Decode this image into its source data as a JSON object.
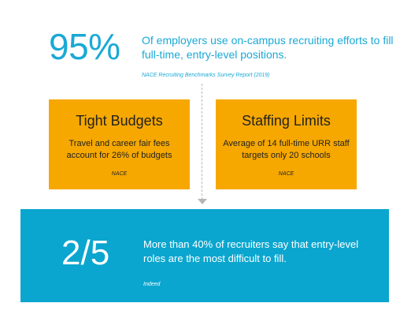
{
  "header": {
    "stat": "95%",
    "text": "Of employers use on-campus recruiting efforts to fill full-time, entry-level positions.",
    "source": "NACE Recruiting Benchmarks Survey Report (2019)"
  },
  "cards": [
    {
      "title": "Tight Budgets",
      "body": "Travel and career fair fees account for 26% of budgets",
      "source": "NACE"
    },
    {
      "title": "Staffing Limits",
      "body": "Average of 14 full-time URR staff targets only 20 schools",
      "source": "NACE"
    }
  ],
  "footer": {
    "stat": "2/5",
    "text": "More than 40% of recruiters say that entry-level roles are the most difficult to fill.",
    "source": "Indeed"
  },
  "colors": {
    "accent_blue": "#1aa9d6",
    "panel_blue": "#0aa6cf",
    "card_orange": "#f6a800",
    "connector_gray": "#b5b5b5"
  }
}
